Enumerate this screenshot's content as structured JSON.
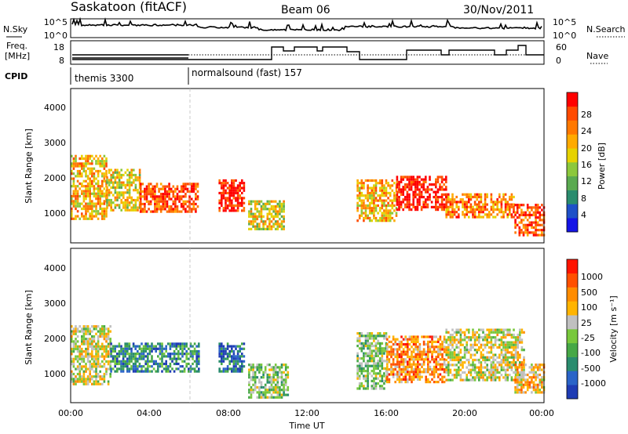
{
  "header": {
    "station": "Saskatoon (fitACF)",
    "beam": "Beam 06",
    "date": "30/Nov/2011"
  },
  "top_panels": {
    "nsky_label": "N.Sky",
    "nsky_ticks": [
      "10^5",
      "10^0"
    ],
    "nsearch_label": "N.Search",
    "nsearch_ticks": [
      "10^5",
      "10^0"
    ],
    "freq_label_1": "Freq.",
    "freq_label_2": "[MHz]",
    "freq_ticks": [
      "18",
      "8"
    ],
    "nave_label": "Nave",
    "nave_ticks": [
      "60",
      "0"
    ],
    "cpid_label": "CPID",
    "cpid_segments": [
      {
        "label": "themis 3300",
        "start_hour": 0,
        "end_hour": 6
      },
      {
        "label": "normalsound (fast) 157",
        "start_hour": 6,
        "end_hour": 24
      }
    ]
  },
  "chart_data": [
    {
      "type": "heatmap",
      "name": "power",
      "ylabel": "Slant Range [km]",
      "xlim": [
        0,
        24
      ],
      "ylim": [
        180,
        4600
      ],
      "yticks": [
        1000,
        2000,
        3000,
        4000
      ],
      "colorbar": {
        "label": "Power [dB]",
        "ticks": [
          "28",
          "24",
          "20",
          "16",
          "12",
          "8",
          "4"
        ],
        "colors": [
          "#1414e6",
          "#1e50c8",
          "#2a8c6e",
          "#5aaa50",
          "#8cc83c",
          "#e6d200",
          "#ffaa00",
          "#ff7800",
          "#ff4a00",
          "#ff0000"
        ]
      },
      "echo_regions": [
        {
          "x0": 0.0,
          "x1": 1.8,
          "y0": 900,
          "y1": 2700,
          "level": 6
        },
        {
          "x0": 1.8,
          "x1": 3.5,
          "y0": 1100,
          "y1": 2300,
          "level": 5
        },
        {
          "x0": 3.5,
          "x1": 6.5,
          "y0": 1100,
          "y1": 1900,
          "level": 8
        },
        {
          "x0": 7.5,
          "x1": 8.8,
          "y0": 1100,
          "y1": 2000,
          "level": 9
        },
        {
          "x0": 9.0,
          "x1": 10.8,
          "y0": 600,
          "y1": 1400,
          "level": 5
        },
        {
          "x0": 14.5,
          "x1": 16.5,
          "y0": 800,
          "y1": 2000,
          "level": 6
        },
        {
          "x0": 16.5,
          "x1": 19.0,
          "y0": 1100,
          "y1": 2100,
          "level": 9
        },
        {
          "x0": 19.0,
          "x1": 22.5,
          "y0": 900,
          "y1": 1600,
          "level": 7
        },
        {
          "x0": 22.5,
          "x1": 24.0,
          "y0": 400,
          "y1": 1300,
          "level": 8
        }
      ]
    },
    {
      "type": "heatmap",
      "name": "velocity",
      "ylabel": "Slant Range [km]",
      "xlabel": "Time UT",
      "xlim": [
        0,
        24
      ],
      "ylim": [
        180,
        4600
      ],
      "yticks": [
        1000,
        2000,
        3000,
        4000
      ],
      "xticks": [
        "00:00",
        "04:00",
        "08:00",
        "12:00",
        "16:00",
        "20:00",
        "00:00"
      ],
      "colorbar": {
        "label": "Velocity [m s⁻¹]",
        "ticks": [
          "1000",
          "500",
          "100",
          "25",
          "-25",
          "-100",
          "-500",
          "-1000"
        ],
        "colors": [
          "#1e3cb4",
          "#2a64c8",
          "#2a8c6e",
          "#46a846",
          "#78c83c",
          "#c0c0c0",
          "#ffb400",
          "#ff8c00",
          "#ff5000",
          "#ff1400"
        ]
      },
      "echo_regions": [
        {
          "x0": 0.0,
          "x1": 2.0,
          "y0": 700,
          "y1": 2400,
          "level": 5
        },
        {
          "x0": 2.0,
          "x1": 6.5,
          "y0": 1100,
          "y1": 1900,
          "level": 2
        },
        {
          "x0": 7.5,
          "x1": 8.8,
          "y0": 1100,
          "y1": 1900,
          "level": 1
        },
        {
          "x0": 9.0,
          "x1": 11.0,
          "y0": 300,
          "y1": 1300,
          "level": 4
        },
        {
          "x0": 14.5,
          "x1": 16.0,
          "y0": 600,
          "y1": 2200,
          "level": 4
        },
        {
          "x0": 16.0,
          "x1": 19.0,
          "y0": 800,
          "y1": 2100,
          "level": 7
        },
        {
          "x0": 19.0,
          "x1": 23.0,
          "y0": 800,
          "y1": 2300,
          "level": 5
        },
        {
          "x0": 22.5,
          "x1": 24.0,
          "y0": 500,
          "y1": 1300,
          "level": 6
        }
      ]
    }
  ]
}
